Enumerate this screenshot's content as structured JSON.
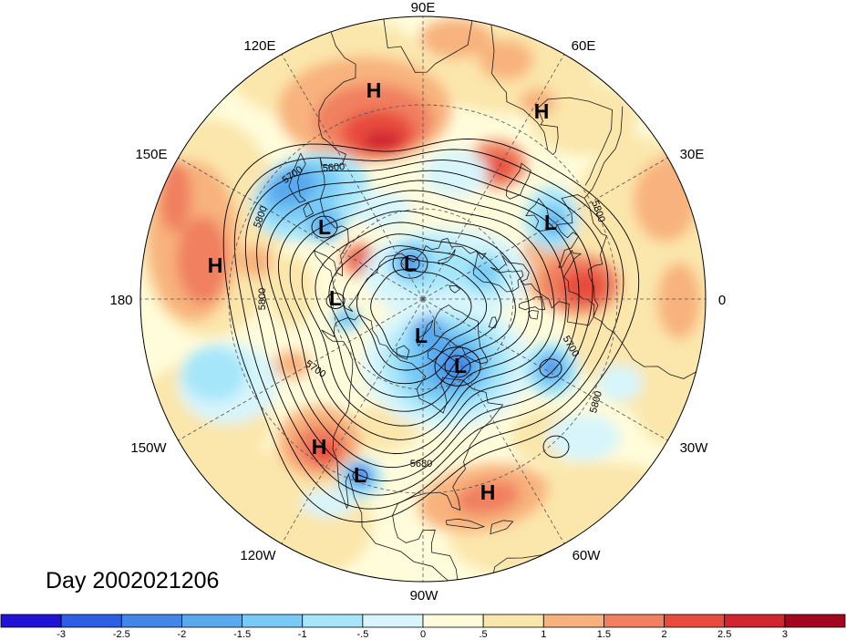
{
  "title": "Day 2002021206",
  "longitude_labels": [
    "90E",
    "60E",
    "30E",
    "0",
    "30W",
    "60W",
    "90W",
    "120W",
    "150W",
    "180",
    "150E",
    "120E"
  ],
  "markers": [
    "H",
    "H",
    "L",
    "L",
    "H",
    "L",
    "L",
    "L",
    "L",
    "H",
    "L",
    "H"
  ],
  "contour_labels": [
    "5600",
    "5700",
    "5800",
    "5800",
    "5700",
    "5800",
    "5700",
    "5800",
    "5680"
  ],
  "colorbar": {
    "ticks": [
      "-3",
      "-2.5",
      "-2",
      "-1.5",
      "-1",
      "-.5",
      "0",
      ".5",
      "1",
      "1.5",
      "2",
      "2.5",
      "3"
    ],
    "colors": [
      "#2212d6",
      "#2d5fe4",
      "#4286e8",
      "#59a9ef",
      "#78cbf6",
      "#a6e6fa",
      "#d7f5fb",
      "#fffcdb",
      "#fbe6ab",
      "#f8b27d",
      "#f08060",
      "#e84b3e",
      "#d12530",
      "#a2071f"
    ]
  }
}
